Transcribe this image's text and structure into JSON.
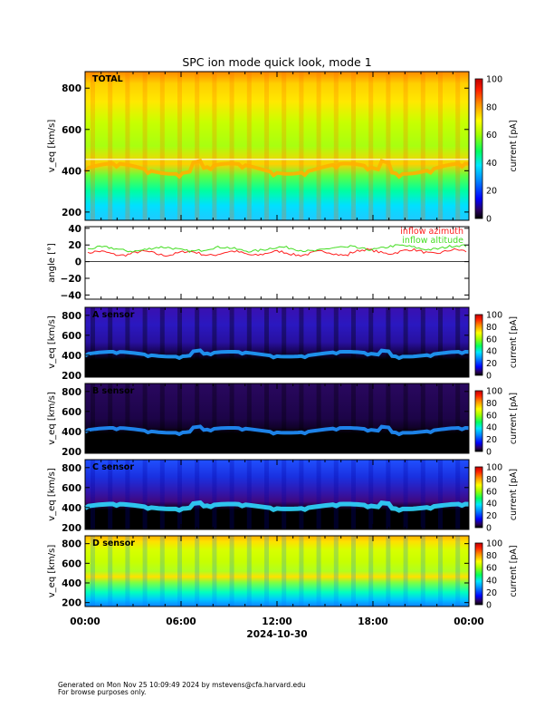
{
  "title": "SPC ion mode quick look, mode 1",
  "colors": {
    "azimuth": "#ff2020",
    "altitude": "#44dd22"
  },
  "chart_data": [
    {
      "type": "heatmap",
      "label": "TOTAL",
      "ylabel": "v_eq [km/s]",
      "ylim": [
        160,
        880
      ],
      "yticks": [
        200,
        400,
        600,
        800
      ],
      "colorbar_label": "current [pA]",
      "colorbar_ticks": [
        0,
        20,
        40,
        60,
        80,
        100
      ]
    },
    {
      "type": "line",
      "ylabel": "angle [°]",
      "ylim": [
        -45,
        42
      ],
      "yticks": [
        -40,
        -20,
        0,
        20,
        40
      ],
      "series": [
        {
          "name": "inflow azimuth",
          "approx_value": 10
        },
        {
          "name": "inflow altitude",
          "approx_value": 15
        }
      ]
    },
    {
      "type": "heatmap",
      "label": "A sensor",
      "ylabel": "v_eq [km/s]",
      "ylim": [
        180,
        880
      ],
      "yticks": [
        200,
        400,
        600,
        800
      ],
      "colorbar_label": "current [pA]",
      "colorbar_ticks": [
        0,
        20,
        40,
        60,
        80,
        100
      ]
    },
    {
      "type": "heatmap",
      "label": "B sensor",
      "ylabel": "v_eq [km/s]",
      "ylim": [
        180,
        880
      ],
      "yticks": [
        200,
        400,
        600,
        800
      ],
      "colorbar_label": "current [pA]",
      "colorbar_ticks": [
        0,
        20,
        40,
        60,
        80,
        100
      ]
    },
    {
      "type": "heatmap",
      "label": "C sensor",
      "ylabel": "v_eq [km/s]",
      "ylim": [
        180,
        880
      ],
      "yticks": [
        200,
        400,
        600,
        800
      ],
      "colorbar_label": "current [pA]",
      "colorbar_ticks": [
        0,
        20,
        40,
        60,
        80,
        100
      ]
    },
    {
      "type": "heatmap",
      "label": "D sensor",
      "ylabel": "v_eq [km/s]",
      "ylim": [
        160,
        880
      ],
      "yticks": [
        200,
        400,
        600,
        800
      ],
      "colorbar_label": "current [pA]",
      "colorbar_ticks": [
        0,
        20,
        40,
        60,
        80,
        100
      ]
    }
  ],
  "x_axis": {
    "ticks": [
      "00:00",
      "06:00",
      "12:00",
      "18:00",
      "00:00"
    ],
    "date": "2024-10-30"
  },
  "footer": {
    "line1": "Generated on Mon Nov 25 10:09:49 2024 by mstevens@cfa.harvard.edu",
    "line2": "For browse purposes only."
  }
}
